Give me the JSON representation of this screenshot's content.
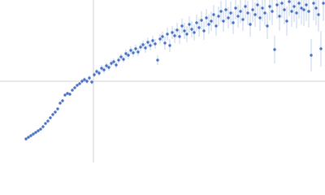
{
  "chart_data": {
    "type": "scatter",
    "reference_lines": {
      "x": 0,
      "y": 0
    },
    "xlim": [
      -115,
      285
    ],
    "ylim": [
      -100,
      100
    ],
    "series": [
      {
        "color": "#4a72c4",
        "error_color": "#aabde6",
        "x": [
          -83,
          -80,
          -77,
          -74,
          -71,
          -68,
          -65,
          -62,
          -59,
          -56,
          -53,
          -50,
          -47,
          -44,
          -41,
          -38,
          -35,
          -32,
          -29,
          -26,
          -23,
          -20,
          -17,
          -14,
          -11,
          -8,
          -5,
          -2,
          1,
          4,
          7,
          10,
          13,
          16,
          19,
          22,
          25,
          28,
          31,
          34,
          37,
          40,
          43,
          46,
          49,
          52,
          55,
          58,
          61,
          64,
          67,
          70,
          73,
          76,
          79,
          82,
          85,
          88,
          91,
          94,
          97,
          100,
          103,
          106,
          109,
          112,
          115,
          118,
          121,
          124,
          127,
          130,
          133,
          136,
          139,
          142,
          145,
          148,
          151,
          154,
          157,
          160,
          163,
          166,
          169,
          172,
          175,
          178,
          181,
          184,
          187,
          190,
          193,
          196,
          199,
          202,
          205,
          208,
          211,
          214,
          217,
          220,
          223,
          226,
          229,
          232,
          235,
          238,
          241,
          244,
          247,
          250,
          253,
          256,
          259,
          262,
          265,
          268,
          271,
          274,
          277,
          280,
          283
        ],
        "values": [
          -71,
          -69,
          -67,
          -65,
          -63,
          -61,
          -59,
          -56,
          -52,
          -49,
          -45,
          -41,
          -38,
          -34,
          -27,
          -24,
          -17,
          -15,
          -16,
          -11,
          -8,
          -5,
          -3,
          0,
          2,
          0,
          4,
          -1,
          8,
          12,
          10,
          16,
          14,
          19,
          17,
          22,
          24,
          20,
          26,
          30,
          27,
          34,
          32,
          38,
          35,
          40,
          36,
          42,
          45,
          41,
          48,
          44,
          50,
          46,
          26,
          52,
          55,
          47,
          58,
          44,
          60,
          56,
          63,
          55,
          68,
          62,
          58,
          70,
          64,
          60,
          72,
          66,
          75,
          62,
          78,
          70,
          74,
          82,
          68,
          80,
          86,
          74,
          88,
          78,
          84,
          72,
          90,
          80,
          86,
          76,
          92,
          84,
          70,
          88,
          82,
          94,
          78,
          90,
          84,
          68,
          92,
          86,
          39,
          94,
          80,
          96,
          88,
          74,
          98,
          86,
          92,
          84,
          96,
          90,
          88,
          94,
          86,
          32,
          96,
          90,
          82,
          40,
          96
        ],
        "errors": [
          1,
          1,
          1,
          1,
          1,
          1,
          1,
          1,
          1,
          1,
          1,
          1,
          1,
          1,
          1,
          1,
          1,
          1,
          1,
          1,
          1,
          1,
          1,
          3,
          3,
          3,
          3,
          3,
          3,
          3,
          3,
          4,
          4,
          4,
          4,
          4,
          4,
          4,
          4,
          4,
          4,
          5,
          5,
          5,
          5,
          5,
          5,
          5,
          5,
          6,
          6,
          6,
          6,
          6,
          6,
          6,
          6,
          8,
          8,
          8,
          8,
          9,
          9,
          9,
          9,
          10,
          10,
          10,
          10,
          10,
          10,
          11,
          11,
          11,
          11,
          12,
          12,
          12,
          12,
          12,
          13,
          13,
          13,
          13,
          14,
          14,
          14,
          14,
          14,
          14,
          15,
          15,
          15,
          15,
          15,
          16,
          16,
          16,
          16,
          16,
          17,
          17,
          17,
          17,
          18,
          18,
          18,
          18,
          18,
          19,
          19,
          19,
          19,
          20,
          20,
          20,
          20,
          20,
          21,
          21,
          21,
          22,
          22
        ]
      }
    ]
  }
}
